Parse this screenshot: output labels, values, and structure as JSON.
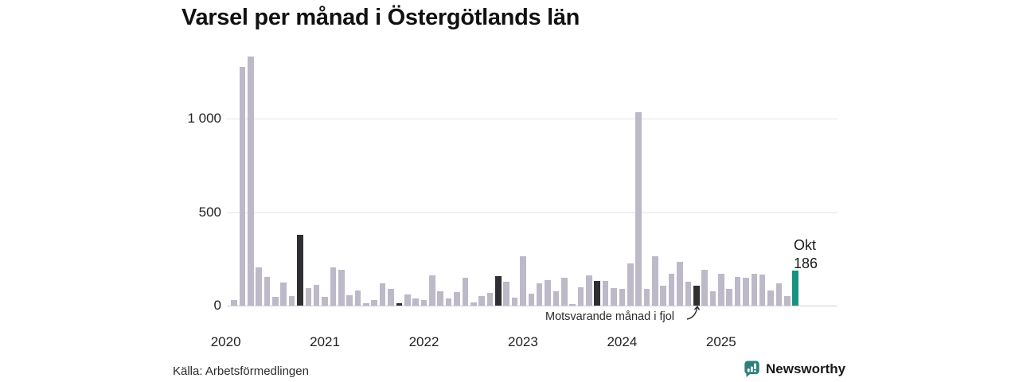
{
  "title": "Varsel per månad i Östergötlands län",
  "annotation": {
    "text": "Motsvarande månad i fjol"
  },
  "highlight": {
    "label_month": "Okt",
    "label_value": "186"
  },
  "footer": {
    "source": "Källa: Arbetsförmedlingen",
    "brand": "Newsworthy"
  },
  "colors": {
    "bar": "#bdb9c8",
    "bar_last_year": "#2f2f33",
    "bar_highlight": "#16947f",
    "grid": "#e4e4e8",
    "axis": "#cfcfd4",
    "brand": "#2e7f7c"
  },
  "chart_data": {
    "type": "bar",
    "title": "Varsel per månad i Östergötlands län",
    "xlabel": "",
    "ylabel": "",
    "ylim": [
      0,
      1400
    ],
    "y_ticks": [
      0,
      500,
      1000
    ],
    "y_tick_labels": [
      "0",
      "500",
      "1 000"
    ],
    "x_tick_labels": [
      "2020",
      "2021",
      "2022",
      "2023",
      "2024",
      "2025"
    ],
    "grid": "horizontal",
    "legend": "none",
    "highlighted_last_value": 186,
    "highlighted_last_month": "Okt 2025",
    "dark_bars_meaning": "Motsvarande månad i fjol (oktober varje år)",
    "series": [
      {
        "name": "Varsel per månad",
        "months": [
          "Feb 2020",
          "Mar 2020",
          "Apr 2020",
          "Maj 2020",
          "Jun 2020",
          "Jul 2020",
          "Aug 2020",
          "Sep 2020",
          "Okt 2020",
          "Nov 2020",
          "Dec 2020",
          "Jan 2021",
          "Feb 2021",
          "Mar 2021",
          "Apr 2021",
          "Maj 2021",
          "Jun 2021",
          "Jul 2021",
          "Aug 2021",
          "Sep 2021",
          "Okt 2021",
          "Nov 2021",
          "Dec 2021",
          "Jan 2022",
          "Feb 2022",
          "Mar 2022",
          "Apr 2022",
          "Maj 2022",
          "Jun 2022",
          "Jul 2022",
          "Aug 2022",
          "Sep 2022",
          "Okt 2022",
          "Nov 2022",
          "Dec 2022",
          "Jan 2023",
          "Feb 2023",
          "Mar 2023",
          "Apr 2023",
          "Maj 2023",
          "Jun 2023",
          "Jul 2023",
          "Aug 2023",
          "Sep 2023",
          "Okt 2023",
          "Nov 2023",
          "Dec 2023",
          "Jan 2024",
          "Feb 2024",
          "Mar 2024",
          "Apr 2024",
          "Maj 2024",
          "Jun 2024",
          "Jul 2024",
          "Aug 2024",
          "Sep 2024",
          "Okt 2024",
          "Nov 2024",
          "Dec 2024",
          "Jan 2025",
          "Feb 2025",
          "Mar 2025",
          "Apr 2025",
          "Maj 2025",
          "Jun 2025",
          "Jul 2025",
          "Aug 2025",
          "Sep 2025",
          "Okt 2025"
        ],
        "values": [
          30,
          1275,
          1330,
          205,
          152,
          46,
          122,
          51,
          380,
          93,
          110,
          45,
          205,
          190,
          55,
          80,
          13,
          30,
          118,
          89,
          12,
          59,
          38,
          28,
          162,
          77,
          38,
          72,
          149,
          17,
          51,
          68,
          157,
          128,
          43,
          264,
          64,
          119,
          136,
          77,
          149,
          8,
          98,
          160,
          134,
          130,
          94,
          89,
          225,
          1035,
          89,
          264,
          105,
          170,
          233,
          128,
          106,
          192,
          77,
          172,
          89,
          153,
          149,
          170,
          166,
          81,
          119,
          51,
          186
        ],
        "styles": [
          "n",
          "n",
          "n",
          "n",
          "n",
          "n",
          "n",
          "n",
          "d",
          "n",
          "n",
          "n",
          "n",
          "n",
          "n",
          "n",
          "n",
          "n",
          "n",
          "n",
          "d",
          "n",
          "n",
          "n",
          "n",
          "n",
          "n",
          "n",
          "n",
          "n",
          "n",
          "n",
          "d",
          "n",
          "n",
          "n",
          "n",
          "n",
          "n",
          "n",
          "n",
          "n",
          "n",
          "n",
          "d",
          "n",
          "n",
          "n",
          "n",
          "n",
          "n",
          "n",
          "n",
          "n",
          "n",
          "n",
          "d",
          "n",
          "n",
          "n",
          "n",
          "n",
          "n",
          "n",
          "n",
          "n",
          "n",
          "n",
          "t"
        ]
      }
    ]
  }
}
